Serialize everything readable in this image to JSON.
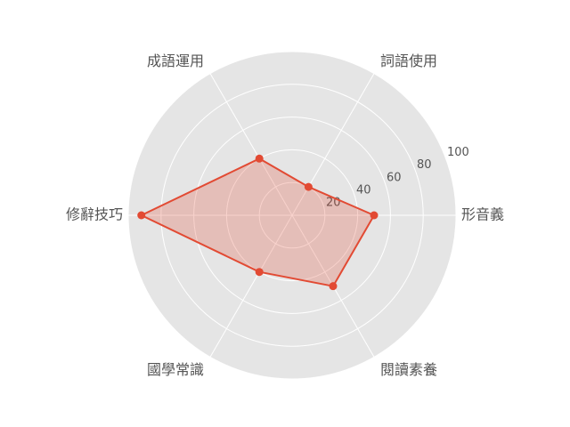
{
  "chart_data": {
    "type": "radar",
    "title": "",
    "categories": [
      "形音義",
      "詞語使用",
      "成語運用",
      "修辭技巧",
      "國學常識",
      "閱讀素養"
    ],
    "series": [
      {
        "values": [
          50,
          20,
          40,
          92,
          40,
          50
        ]
      }
    ],
    "rlim": [
      0,
      100
    ],
    "rticks": [
      20,
      40,
      60,
      80,
      100
    ],
    "grid": true,
    "colors": {
      "background": "#e5e5e5",
      "grid": "#ffffff",
      "line": "#e24a33",
      "fill": "#e24a33",
      "text": "#555555"
    }
  }
}
